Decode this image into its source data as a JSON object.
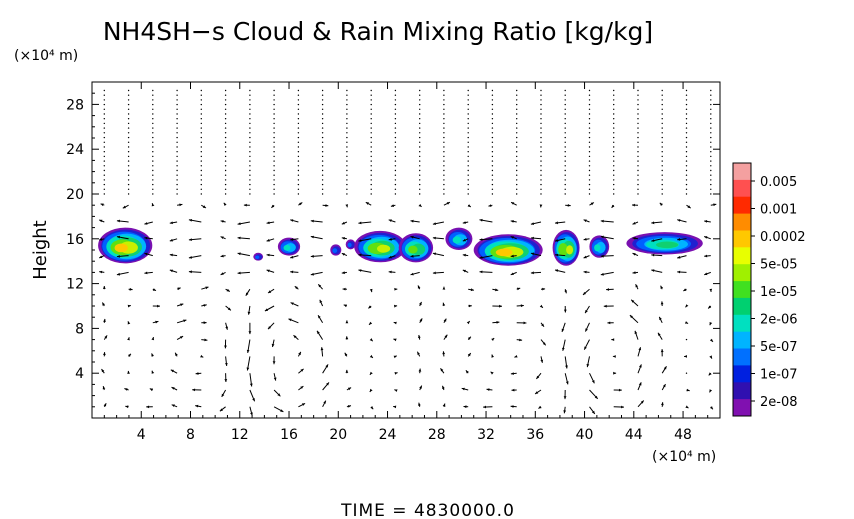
{
  "chart_data": {
    "type": "heatmap",
    "title": "NH4SH−s Cloud & Rain Mixing Ratio [kg/kg]",
    "ylabel": "Height",
    "x_unit": "(×10⁴ m)",
    "y_unit": "(×10⁴ m)",
    "time_label": "TIME  =  4830000.0",
    "xlim": [
      0,
      51
    ],
    "ylim": [
      0,
      30
    ],
    "x_ticks": [
      4,
      8,
      12,
      16,
      20,
      24,
      28,
      32,
      36,
      40,
      44,
      48
    ],
    "y_ticks": [
      4,
      8,
      12,
      16,
      20,
      24,
      28
    ],
    "colorbar": {
      "labels": [
        "0.005",
        "0.001",
        "0.0002",
        "5e-05",
        "1e-05",
        "2e-06",
        "5e-07",
        "1e-07",
        "2e-08"
      ],
      "colors": [
        "#f4a0a0",
        "#ff5050",
        "#ff2a00",
        "#ff8c00",
        "#ffc800",
        "#e8ff00",
        "#a0f000",
        "#40e020",
        "#00d070",
        "#00e0c0",
        "#00b4ff",
        "#0070ff",
        "#0020e0",
        "#3010b0",
        "#8010b0"
      ]
    },
    "cloud_blobs": [
      {
        "x": 2.7,
        "y": 15.4,
        "w": 4.4,
        "h": 3.2,
        "level": 0.95
      },
      {
        "x": 13.5,
        "y": 14.4,
        "w": 0.8,
        "h": 0.7,
        "level": 0.3
      },
      {
        "x": 16.0,
        "y": 15.3,
        "w": 1.8,
        "h": 1.6,
        "level": 0.5
      },
      {
        "x": 19.8,
        "y": 15.0,
        "w": 0.9,
        "h": 1.0,
        "level": 0.35
      },
      {
        "x": 21.0,
        "y": 15.5,
        "w": 0.8,
        "h": 0.9,
        "level": 0.3
      },
      {
        "x": 23.4,
        "y": 15.3,
        "w": 4.2,
        "h": 2.8,
        "level": 0.9
      },
      {
        "x": 26.3,
        "y": 15.2,
        "w": 2.8,
        "h": 2.6,
        "level": 0.8
      },
      {
        "x": 29.8,
        "y": 16.0,
        "w": 2.2,
        "h": 2.0,
        "level": 0.55
      },
      {
        "x": 33.8,
        "y": 15.0,
        "w": 5.6,
        "h": 2.8,
        "level": 0.95
      },
      {
        "x": 38.5,
        "y": 15.2,
        "w": 2.2,
        "h": 3.2,
        "level": 0.85
      },
      {
        "x": 41.2,
        "y": 15.3,
        "w": 1.6,
        "h": 2.0,
        "level": 0.5
      },
      {
        "x": 46.5,
        "y": 15.6,
        "w": 6.2,
        "h": 2.0,
        "level": 0.7
      }
    ]
  }
}
